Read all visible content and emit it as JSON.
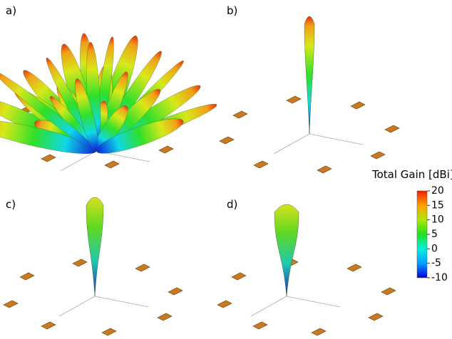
{
  "panels": [
    {
      "label": "a)"
    },
    {
      "label": "b)"
    },
    {
      "label": "c)"
    },
    {
      "label": "d)"
    }
  ],
  "colorbar": {
    "title": "Total Gain [dBi]",
    "lim": [
      -10,
      20
    ],
    "ticks": [
      20,
      15,
      10,
      5,
      0,
      -5,
      -10
    ]
  }
}
